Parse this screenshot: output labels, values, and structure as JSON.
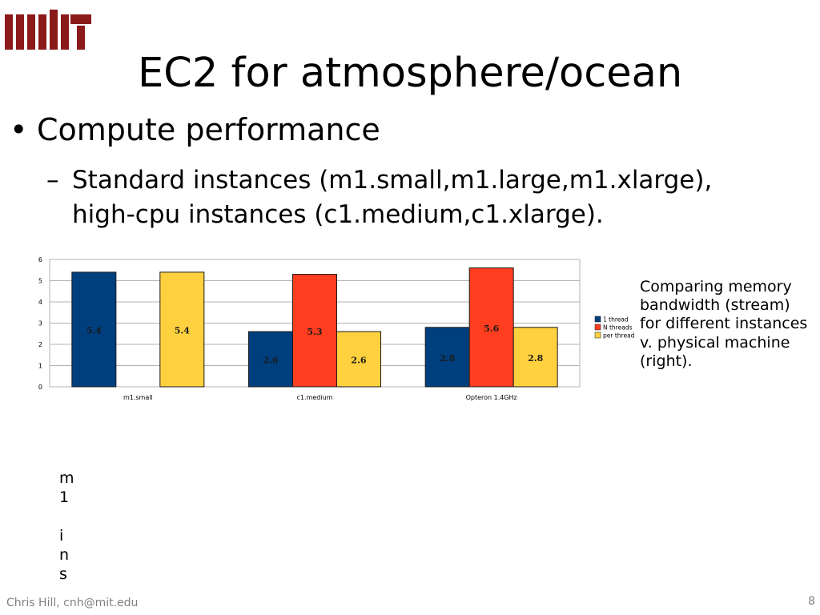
{
  "slide": {
    "title": "EC2 for atmosphere/ocean",
    "bullet1": "Compute performance",
    "bullet2_lines": [
      "Standard instances (m1.small,m1.large,m1.xlarge),",
      "high-cpu instances (c1.medium,c1.xlarge)."
    ],
    "note_lines": [
      "Comparing memory",
      "bandwidth (stream)",
      "for different instances",
      "v. physical machine",
      "(right)."
    ],
    "vertical_chars": [
      "m",
      "1",
      "",
      "i",
      "n",
      "s"
    ],
    "footer": "Chris Hill, cnh@mit.edu",
    "page_number": "8",
    "logo_color": "#8b1a1a"
  },
  "chart_data": {
    "type": "bar",
    "categories": [
      "m1.small",
      "c1.medium",
      "Opteron 1.4GHz"
    ],
    "series": [
      {
        "name": "1 thread",
        "color": "#003f7d",
        "values": [
          5.4,
          2.6,
          2.8
        ]
      },
      {
        "name": "N threads",
        "color": "#ff3d1f",
        "values": [
          null,
          5.3,
          5.6
        ]
      },
      {
        "name": "per thread",
        "color": "#ffd13f",
        "values": [
          5.4,
          2.6,
          2.8
        ]
      }
    ],
    "y_ticks": [
      "0",
      "1",
      "2",
      "3",
      "4",
      "5",
      "6"
    ],
    "ylim": [
      0,
      6
    ],
    "grid": true,
    "legend": "right"
  }
}
